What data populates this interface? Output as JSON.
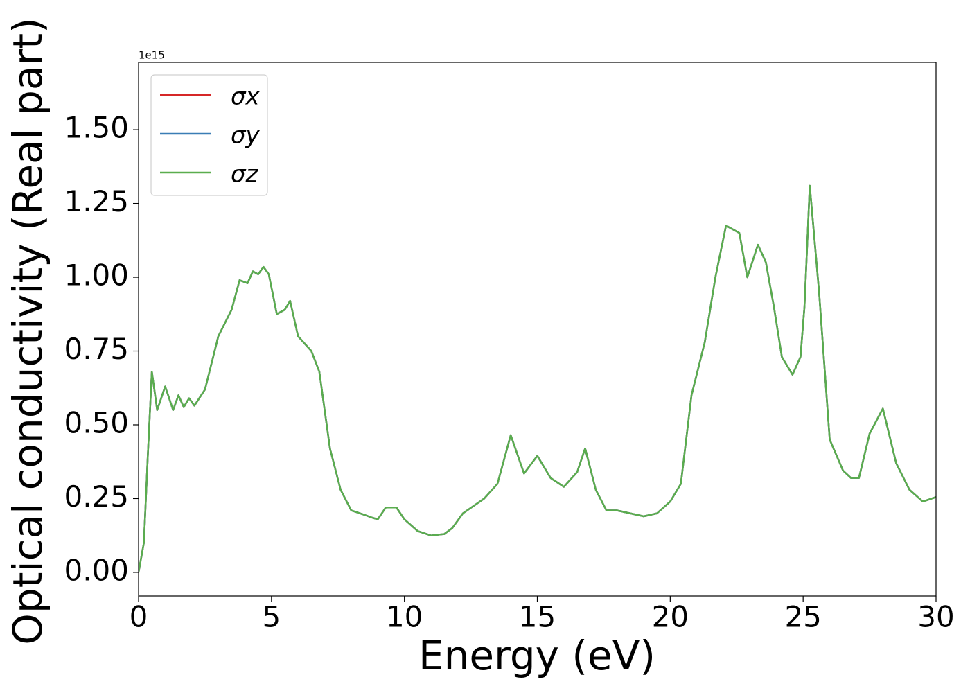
{
  "chart_data": {
    "type": "line",
    "xlabel": "Energy (eV)",
    "ylabel": "Optical conductivity (Real part)",
    "y_offset_label": "1e15",
    "xlim": [
      0,
      30
    ],
    "xticks": [
      0,
      5,
      10,
      15,
      20,
      25,
      30
    ],
    "ylim": [
      -0.08,
      1.728
    ],
    "yticks": [
      {
        "value": 0,
        "label": "0.00"
      },
      {
        "value": 0.25,
        "label": "0.25"
      },
      {
        "value": 0.5,
        "label": "0.50"
      },
      {
        "value": 0.75,
        "label": "0.75"
      },
      {
        "value": 1.0,
        "label": "1.00"
      },
      {
        "value": 1.25,
        "label": "1.25"
      },
      {
        "value": 1.5,
        "label": "1.50"
      }
    ],
    "legend": "upper left",
    "x": [
      0,
      0.2,
      0.35,
      0.5,
      0.7,
      1.0,
      1.3,
      1.5,
      1.7,
      1.9,
      2.1,
      2.5,
      3.0,
      3.5,
      3.8,
      4.1,
      4.3,
      4.5,
      4.7,
      4.9,
      5.2,
      5.5,
      5.7,
      6.0,
      6.5,
      6.8,
      7.2,
      7.6,
      8.0,
      8.5,
      8.8,
      9.0,
      9.3,
      9.7,
      10.0,
      10.5,
      11.0,
      11.5,
      11.8,
      12.2,
      12.6,
      13.0,
      13.5,
      14.0,
      14.5,
      15.0,
      15.5,
      16.0,
      16.5,
      16.8,
      17.2,
      17.6,
      18.0,
      18.5,
      19.0,
      19.5,
      20.0,
      20.4,
      20.8,
      21.3,
      21.7,
      22.1,
      22.4,
      22.6,
      22.9,
      23.3,
      23.6,
      23.9,
      24.2,
      24.6,
      24.9,
      25.05,
      25.25,
      25.6,
      26.0,
      26.5,
      26.8,
      27.1,
      27.5,
      28.0,
      28.5,
      29.0,
      29.5,
      30.0
    ],
    "series": [
      {
        "name": "σx",
        "color": "#d62728",
        "values": [
          0.0,
          0.1,
          0.4,
          0.68,
          0.55,
          0.63,
          0.55,
          0.6,
          0.56,
          0.59,
          0.565,
          0.62,
          0.8,
          0.89,
          0.99,
          0.98,
          1.02,
          1.01,
          1.035,
          1.01,
          0.875,
          0.89,
          0.92,
          0.8,
          0.75,
          0.68,
          0.42,
          0.28,
          0.21,
          0.195,
          0.185,
          0.18,
          0.22,
          0.22,
          0.18,
          0.14,
          0.125,
          0.13,
          0.15,
          0.2,
          0.225,
          0.25,
          0.3,
          0.465,
          0.335,
          0.395,
          0.32,
          0.29,
          0.34,
          0.42,
          0.28,
          0.21,
          0.21,
          0.2,
          0.19,
          0.2,
          0.24,
          0.3,
          0.6,
          0.78,
          1.0,
          1.175,
          1.16,
          1.15,
          1.0,
          1.11,
          1.05,
          0.9,
          0.73,
          0.67,
          0.73,
          0.9,
          1.31,
          0.95,
          0.45,
          0.345,
          0.32,
          0.32,
          0.47,
          0.555,
          0.37,
          0.28,
          0.24,
          0.255
        ]
      },
      {
        "name": "σy",
        "color": "#3a7db5",
        "values": [
          0.0,
          0.1,
          0.4,
          0.68,
          0.55,
          0.63,
          0.55,
          0.6,
          0.56,
          0.59,
          0.565,
          0.62,
          0.8,
          0.89,
          0.99,
          0.98,
          1.02,
          1.01,
          1.035,
          1.01,
          0.875,
          0.89,
          0.92,
          0.8,
          0.75,
          0.68,
          0.42,
          0.28,
          0.21,
          0.195,
          0.185,
          0.18,
          0.22,
          0.22,
          0.18,
          0.14,
          0.125,
          0.13,
          0.15,
          0.2,
          0.225,
          0.25,
          0.3,
          0.465,
          0.335,
          0.395,
          0.32,
          0.29,
          0.34,
          0.42,
          0.28,
          0.21,
          0.21,
          0.2,
          0.19,
          0.2,
          0.24,
          0.3,
          0.6,
          0.78,
          1.0,
          1.175,
          1.16,
          1.15,
          1.0,
          1.11,
          1.05,
          0.9,
          0.73,
          0.67,
          0.73,
          0.9,
          1.31,
          0.95,
          0.45,
          0.345,
          0.32,
          0.32,
          0.47,
          0.555,
          0.37,
          0.28,
          0.24,
          0.255
        ]
      },
      {
        "name": "σz",
        "color": "#5aad4e",
        "values": [
          0.0,
          0.1,
          0.4,
          0.68,
          0.55,
          0.63,
          0.55,
          0.6,
          0.56,
          0.59,
          0.565,
          0.62,
          0.8,
          0.89,
          0.99,
          0.98,
          1.02,
          1.01,
          1.035,
          1.01,
          0.875,
          0.89,
          0.92,
          0.8,
          0.75,
          0.68,
          0.42,
          0.28,
          0.21,
          0.195,
          0.185,
          0.18,
          0.22,
          0.22,
          0.18,
          0.14,
          0.125,
          0.13,
          0.15,
          0.2,
          0.225,
          0.25,
          0.3,
          0.465,
          0.335,
          0.395,
          0.32,
          0.29,
          0.34,
          0.42,
          0.28,
          0.21,
          0.21,
          0.2,
          0.19,
          0.2,
          0.24,
          0.3,
          0.6,
          0.78,
          1.0,
          1.175,
          1.16,
          1.15,
          1.0,
          1.11,
          1.05,
          0.9,
          0.73,
          0.67,
          0.73,
          0.9,
          1.31,
          0.95,
          0.45,
          0.345,
          0.32,
          0.32,
          0.47,
          0.555,
          0.37,
          0.28,
          0.24,
          0.255
        ]
      }
    ]
  }
}
